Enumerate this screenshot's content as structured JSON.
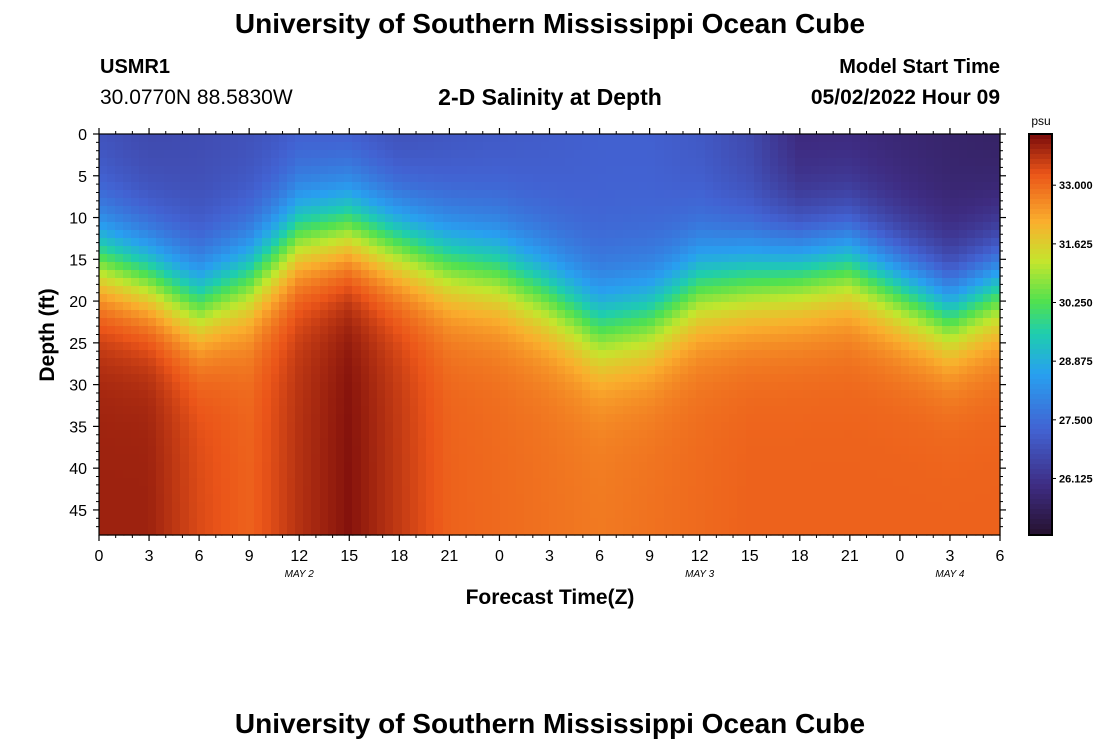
{
  "page": {
    "title_top": "University of Southern Mississippi Ocean Cube",
    "title_bottom": "University of Southern Mississippi Ocean Cube",
    "station_id": "USMR1",
    "station_coords": "30.0770N  88.5830W",
    "chart_title": "2-D Salinity at Depth",
    "model_start_label": "Model Start Time",
    "model_start_value": "05/02/2022 Hour 09"
  },
  "chart_data": {
    "type": "heatmap",
    "title": "2-D Salinity at Depth",
    "xlabel": "Forecast Time(Z)",
    "ylabel": "Depth (ft)",
    "x_tick_labels": [
      "0",
      "3",
      "6",
      "9",
      "12",
      "15",
      "18",
      "21",
      "0",
      "3",
      "6",
      "9",
      "12",
      "15",
      "18",
      "21",
      "0",
      "3",
      "6"
    ],
    "x_hours": [
      0,
      3,
      6,
      9,
      12,
      15,
      18,
      21,
      24,
      27,
      30,
      33,
      36,
      39,
      42,
      45,
      48,
      51,
      54
    ],
    "date_labels": [
      {
        "label": "MAY 2",
        "hour": 12
      },
      {
        "label": "MAY 3",
        "hour": 36
      },
      {
        "label": "MAY 4",
        "hour": 51
      }
    ],
    "xlim": [
      0,
      54
    ],
    "ylim": [
      0,
      48
    ],
    "y_ticks": [
      0,
      5,
      10,
      15,
      20,
      25,
      30,
      35,
      40,
      45
    ],
    "colorbar": {
      "unit": "psu",
      "ticks": [
        "26.125",
        "27.500",
        "28.875",
        "30.250",
        "31.625",
        "33.000"
      ],
      "tick_values": [
        26.125,
        27.5,
        28.875,
        30.25,
        31.625,
        33.0
      ],
      "range": [
        24.8,
        34.2
      ]
    },
    "halocline_hours": [
      0,
      3,
      6,
      9,
      12,
      15,
      18,
      21,
      24,
      27,
      30,
      33,
      36,
      39,
      42,
      45,
      48,
      51,
      54
    ],
    "halocline_depth_ft": [
      15,
      17,
      20,
      17,
      12,
      11,
      13,
      15,
      16,
      19,
      23,
      22,
      18,
      17,
      16,
      15,
      18,
      21,
      18
    ],
    "surface_salinity": [
      26.8,
      26.6,
      26.7,
      26.8,
      27.0,
      26.9,
      26.7,
      26.9,
      27.0,
      27.1,
      27.2,
      27.2,
      27.0,
      26.6,
      25.8,
      25.8,
      25.7,
      25.6,
      25.5
    ],
    "bottom_salinity": [
      33.9,
      33.9,
      33.4,
      33.1,
      33.7,
      34.1,
      33.6,
      33.1,
      33.0,
      32.9,
      32.8,
      32.9,
      33.0,
      33.1,
      33.1,
      33.1,
      33.1,
      33.1,
      33.1
    ]
  }
}
